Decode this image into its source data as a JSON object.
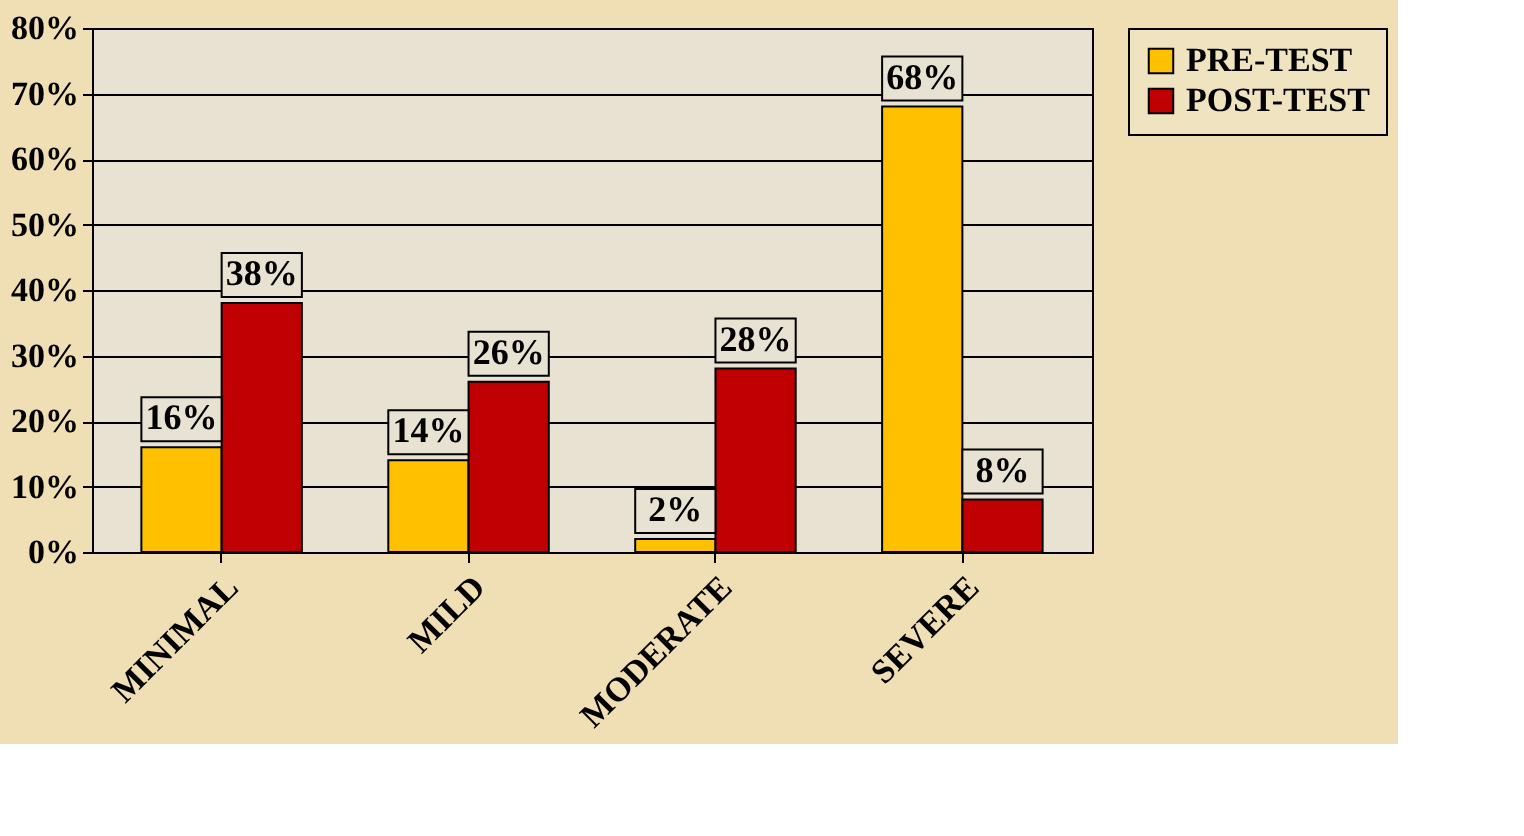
{
  "chart_data": {
    "type": "bar",
    "categories": [
      "MINIMAL",
      "MILD",
      "MODERATE",
      "SEVERE"
    ],
    "series": [
      {
        "name": "PRE-TEST",
        "color": "#ffc000",
        "values": [
          16,
          14,
          2,
          68
        ],
        "value_labels": [
          "16%",
          "14%",
          "2%",
          "68%"
        ]
      },
      {
        "name": "POST-TEST",
        "color": "#c00000",
        "values": [
          38,
          26,
          28,
          8
        ],
        "value_labels": [
          "38%",
          "26%",
          "28%",
          "8%"
        ]
      }
    ],
    "ylim": [
      0,
      80
    ],
    "yticks": [
      {
        "value": 0,
        "label": "0%"
      },
      {
        "value": 10,
        "label": "10%"
      },
      {
        "value": 20,
        "label": "20%"
      },
      {
        "value": 30,
        "label": "30%"
      },
      {
        "value": 40,
        "label": "40%"
      },
      {
        "value": 50,
        "label": "50%"
      },
      {
        "value": 60,
        "label": "60%"
      },
      {
        "value": 70,
        "label": "70%"
      },
      {
        "value": 80,
        "label": "80%"
      }
    ],
    "grid": "y",
    "legend": "right"
  }
}
